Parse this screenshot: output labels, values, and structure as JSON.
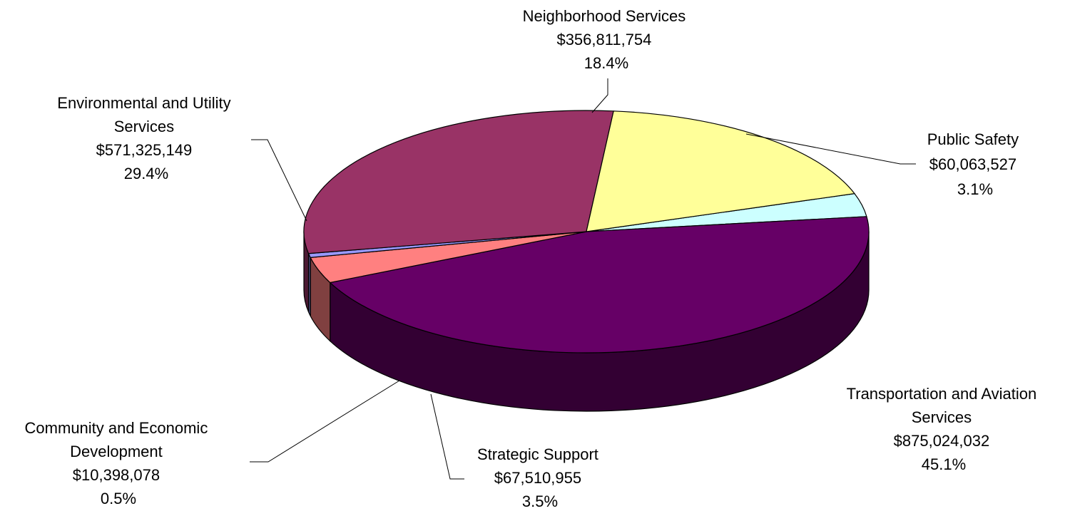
{
  "chart_data": {
    "type": "pie",
    "title": "",
    "three_d": true,
    "legend": "none",
    "slices": [
      {
        "name": "Public Safety",
        "value_label": "$60,063,527",
        "percent_label": "3.1%",
        "value": 60063527,
        "color": "#CCFFFF",
        "side_color": "#88AAAA"
      },
      {
        "name": "Transportation and Aviation Services",
        "value_label": "$875,024,032",
        "percent_label": "45.1%",
        "value": 875024032,
        "color": "#660066",
        "side_color": "#330033"
      },
      {
        "name": "Strategic Support",
        "value_label": "$67,510,955",
        "percent_label": "3.5%",
        "value": 67510955,
        "color": "#FF8080",
        "side_color": "#804040"
      },
      {
        "name": "Community and Economic Development",
        "value_label": "$10,398,078",
        "percent_label": "0.5%",
        "value": 10398078,
        "color": "#9999FF",
        "side_color": "#4D4D80"
      },
      {
        "name": "Environmental and Utility Services",
        "value_label": "$571,325,149",
        "percent_label": "29.4%",
        "value": 571325149,
        "color": "#993366",
        "side_color": "#4D1A33"
      },
      {
        "name": "Neighborhood Services",
        "value_label": "$356,811,754",
        "percent_label": "18.4%",
        "value": 356811754,
        "color": "#FFFF99",
        "side_color": "#80804D"
      }
    ]
  }
}
